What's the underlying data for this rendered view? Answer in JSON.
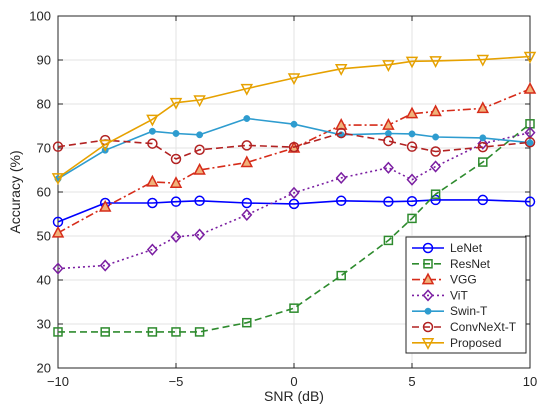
{
  "chart_data": {
    "type": "line",
    "title": "",
    "xlabel": "SNR (dB)",
    "ylabel": "Accuracy (%)",
    "xlim": [
      -10,
      10
    ],
    "ylim": [
      20,
      100
    ],
    "xticks": [
      -10,
      -5,
      0,
      5,
      10
    ],
    "xtick_labels": [
      "−10",
      "−5",
      "0",
      "5",
      "10"
    ],
    "yticks": [
      20,
      30,
      40,
      50,
      60,
      70,
      80,
      90,
      100
    ],
    "ytick_labels": [
      "20",
      "30",
      "40",
      "50",
      "60",
      "70",
      "80",
      "90",
      "100"
    ],
    "grid": true,
    "legend_position": "bottom-right",
    "series": [
      {
        "name": "LeNet",
        "color": "#0000ff",
        "line_style": "solid",
        "marker": "circle",
        "x": [
          -10,
          -8,
          -6,
          -5,
          -4,
          -2,
          0,
          2,
          4,
          5,
          6,
          8,
          10
        ],
        "y": [
          53.2,
          57.5,
          57.5,
          57.8,
          58.0,
          57.5,
          57.3,
          58.0,
          57.8,
          57.9,
          58.2,
          58.2,
          57.8
        ]
      },
      {
        "name": "ResNet",
        "color": "#2e8b2e",
        "line_style": "dashed",
        "marker": "square",
        "x": [
          -10,
          -8,
          -6,
          -5,
          -4,
          -2,
          0,
          2,
          4,
          5,
          6,
          8,
          10
        ],
        "y": [
          28.2,
          28.2,
          28.2,
          28.2,
          28.2,
          30.3,
          33.6,
          41.0,
          49.0,
          54.0,
          59.5,
          66.8,
          75.5
        ]
      },
      {
        "name": "VGG",
        "color": "#d62c1a",
        "line_style": "dashdot",
        "marker": "triangle-up",
        "x": [
          -10,
          -8,
          -6,
          -5,
          -4,
          -2,
          0,
          2,
          4,
          5,
          6,
          8,
          10
        ],
        "y": [
          50.7,
          56.6,
          62.3,
          62.0,
          65.0,
          66.7,
          70.0,
          75.2,
          75.2,
          77.8,
          78.3,
          79.0,
          83.4
        ]
      },
      {
        "name": "ViT",
        "color": "#7b1fa2",
        "line_style": "dotted",
        "marker": "diamond",
        "x": [
          -10,
          -8,
          -6,
          -5,
          -4,
          -2,
          0,
          2,
          4,
          5,
          6,
          8,
          10
        ],
        "y": [
          42.6,
          43.3,
          46.9,
          49.8,
          50.3,
          54.8,
          59.8,
          63.2,
          65.5,
          62.8,
          65.8,
          71.0,
          73.5
        ]
      },
      {
        "name": "Swin-T",
        "color": "#2e9ccf",
        "line_style": "solid",
        "marker": "asterisk",
        "x": [
          -10,
          -8,
          -6,
          -5,
          -4,
          -2,
          0,
          2,
          4,
          5,
          6,
          8,
          10
        ],
        "y": [
          63.0,
          69.5,
          73.8,
          73.3,
          73.0,
          76.7,
          75.4,
          73.0,
          73.3,
          73.2,
          72.5,
          72.3,
          71.2
        ]
      },
      {
        "name": "ConvNeXt-T",
        "color": "#b22222",
        "line_style": "dashed",
        "marker": "circle",
        "x": [
          -10,
          -8,
          -6,
          -5,
          -4,
          -2,
          0,
          2,
          4,
          5,
          6,
          8,
          10
        ],
        "y": [
          70.3,
          71.8,
          71.0,
          67.5,
          69.6,
          70.6,
          70.2,
          73.4,
          71.6,
          70.3,
          69.2,
          70.2,
          71.3
        ]
      },
      {
        "name": "Proposed",
        "color": "#e6a100",
        "line_style": "solid",
        "marker": "triangle-down",
        "x": [
          -10,
          -8,
          -6,
          -5,
          -4,
          -2,
          0,
          2,
          4,
          5,
          6,
          8,
          10
        ],
        "y": [
          63.2,
          70.8,
          76.5,
          80.3,
          80.9,
          83.5,
          85.9,
          88.0,
          88.9,
          89.7,
          89.8,
          90.1,
          90.8
        ]
      }
    ]
  }
}
